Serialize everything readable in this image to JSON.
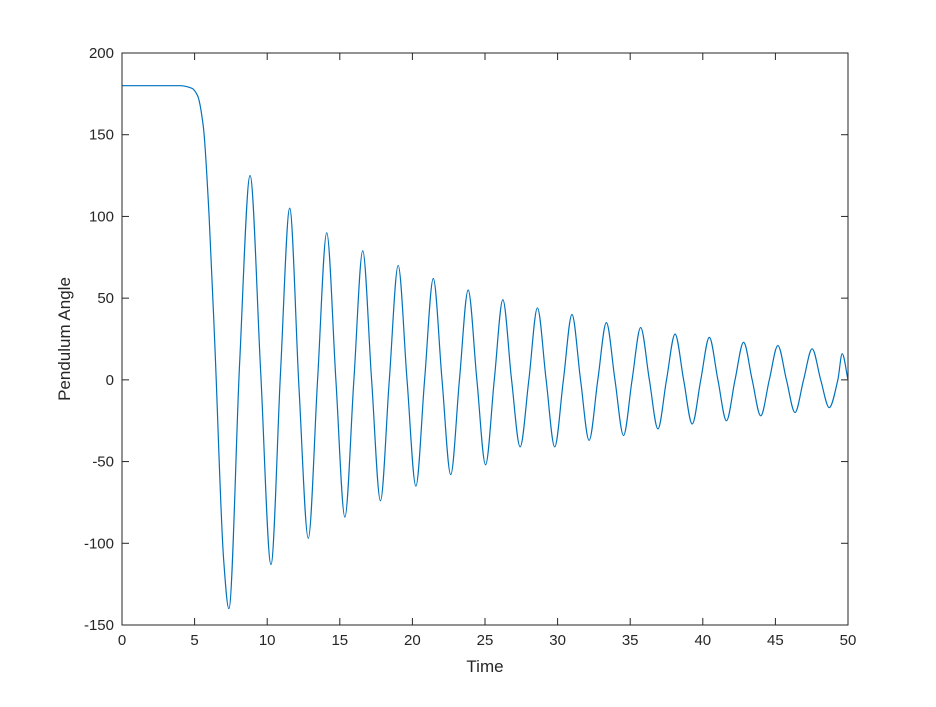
{
  "chart_data": {
    "type": "line",
    "title": "",
    "xlabel": "Time",
    "ylabel": "Pendulum Angle",
    "xlim": [
      0,
      50
    ],
    "ylim": [
      -150,
      200
    ],
    "xticks": [
      "0",
      "5",
      "10",
      "15",
      "20",
      "25",
      "30",
      "35",
      "40",
      "45",
      "50"
    ],
    "yticks": [
      "-150",
      "-100",
      "-50",
      "0",
      "50",
      "100",
      "150",
      "200"
    ],
    "grid": false,
    "legend": "none",
    "line_color": "#0072bd",
    "series": [
      {
        "x": [
          0,
          4.0,
          4.8,
          5.2,
          5.6,
          6.0,
          6.4,
          7.0,
          7.36,
          8.1,
          8.82,
          9.55,
          10.26,
          10.92,
          11.55,
          12.19,
          12.83,
          13.47,
          14.1,
          14.73,
          15.35,
          15.97,
          16.58,
          17.19,
          17.8,
          18.41,
          19.02,
          19.63,
          20.24,
          20.84,
          21.44,
          22.04,
          22.64,
          23.24,
          23.84,
          24.44,
          25.04,
          25.64,
          26.23,
          26.83,
          27.42,
          28.02,
          28.61,
          29.21,
          29.8,
          30.4,
          30.99,
          31.58,
          32.17,
          32.77,
          33.36,
          33.95,
          34.54,
          35.13,
          35.72,
          36.32,
          36.91,
          37.5,
          38.09,
          38.68,
          39.27,
          39.86,
          40.45,
          41.04,
          41.63,
          42.22,
          42.81,
          43.4,
          43.99,
          44.58,
          45.17,
          45.76,
          46.35,
          46.94,
          47.53,
          48.12,
          48.71,
          49.3,
          49.6,
          50.0
        ],
        "y": [
          180,
          180,
          178.5,
          174,
          155,
          100,
          20,
          -110,
          -140,
          10,
          125,
          5,
          -113,
          5,
          105,
          -5,
          -97,
          0,
          90,
          0,
          -84,
          0,
          79,
          0,
          -74,
          0,
          70,
          0,
          -65,
          0,
          62,
          0,
          -58,
          0,
          55,
          0,
          -52,
          0,
          49,
          0,
          -41,
          0,
          44,
          0,
          -41,
          0,
          40,
          0,
          -37,
          0,
          35,
          0,
          -34,
          0,
          32,
          0,
          -30,
          0,
          28,
          0,
          -27,
          0,
          26,
          0,
          -25,
          0,
          23,
          0,
          -22,
          0,
          21,
          0,
          -20,
          0,
          19,
          0,
          -17,
          0,
          16,
          0
        ]
      }
    ]
  }
}
